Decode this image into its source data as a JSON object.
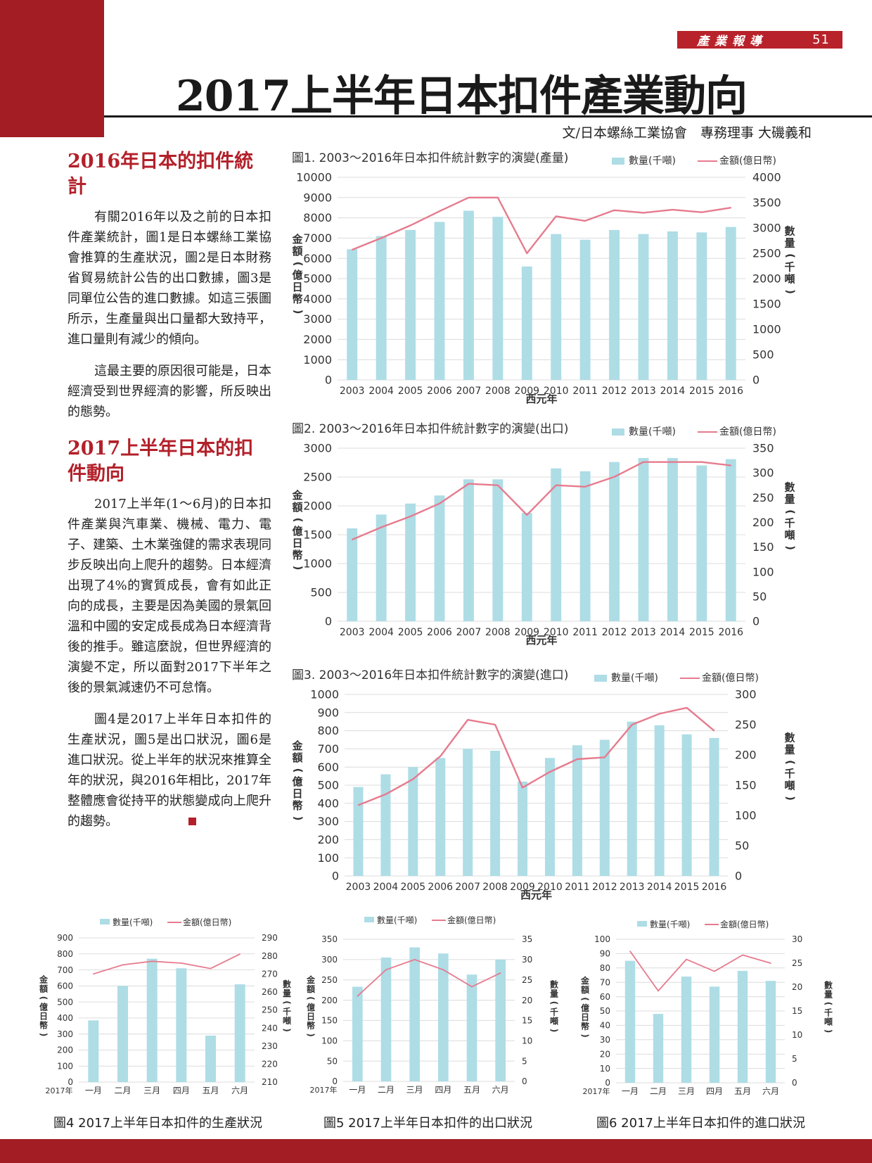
{
  "header": {
    "section": "產業報導",
    "page_number": "51"
  },
  "title": "2017上半年日本扣件產業動向",
  "byline": "文/日本螺絲工業協會　專務理事 大磯義和",
  "colors": {
    "accent": "#a31d24",
    "bar": "#aedde6",
    "line": "#e67b8e",
    "heading": "#b3202a"
  },
  "article": {
    "heading1": "2016年日本的扣件統計",
    "p1": "有關2016年以及之前的日本扣件產業統計，圖1是日本螺絲工業協會推算的生產狀況，圖2是日本財務省貿易統計公告的出口數據，圖3是同單位公告的進口數據。如這三張圖所示，生產量與出口量都大致持平，進口量則有減少的傾向。",
    "p2": "這最主要的原因很可能是，日本經濟受到世界經濟的影響，所反映出的態勢。",
    "heading2": "2017上半年日本的扣件動向",
    "p3": "2017上半年(1～6月)的日本扣件產業與汽車業、機械、電力、電子、建築、土木業強健的需求表現同步反映出向上爬升的趨勢。日本經濟出現了4%的實質成長，會有如此正向的成長，主要是因為美國的景氣回溫和中國的安定成長成為日本經濟背後的推手。雖這麼說，但世界經濟的演變不定，所以面對2017下半年之後的景氣減速仍不可怠惰。",
    "p4": "圖4是2017上半年日本扣件的生產狀況，圖5是出口狀況，圖6是進口狀況。從上半年的狀況來推算全年的狀況，與2016年相比，2017年整體應會從持平的狀態變成向上爬升的趨勢。"
  },
  "chart_data": [
    {
      "type": "bar",
      "title": "圖1. 2003～2016年日本扣件統計數字的演變(產量)",
      "xlabel": "西元年",
      "ylabel_left": "金額(億日幣)",
      "ylabel_right": "數量(千噸)",
      "categories": [
        "2003",
        "2004",
        "2005",
        "2006",
        "2007",
        "2008",
        "2009",
        "2010",
        "2011",
        "2012",
        "2013",
        "2014",
        "2015",
        "2016"
      ],
      "left_axis": {
        "min": 0,
        "max": 10000,
        "step": 1000
      },
      "right_axis": {
        "min": 0,
        "max": 4000,
        "step": 500
      },
      "series": [
        {
          "name": "數量(千噸)",
          "kind": "bar",
          "axis": "left",
          "values": [
            6450,
            7100,
            7400,
            7800,
            8350,
            8050,
            5600,
            7200,
            6920,
            7400,
            7200,
            7330,
            7280,
            7550
          ]
        },
        {
          "name": "金額(億日幣)",
          "kind": "line",
          "axis": "right",
          "values": [
            2570,
            2800,
            3050,
            3330,
            3600,
            3600,
            2500,
            3230,
            3140,
            3350,
            3300,
            3360,
            3310,
            3400
          ]
        }
      ]
    },
    {
      "type": "bar",
      "title": "圖2. 2003～2016年日本扣件統計數字的演變(出口)",
      "xlabel": "西元年",
      "ylabel_left": "金額(億日幣)",
      "ylabel_right": "數量(千噸)",
      "categories": [
        "2003",
        "2004",
        "2005",
        "2006",
        "2007",
        "2008",
        "2009",
        "2010",
        "2011",
        "2012",
        "2013",
        "2014",
        "2015",
        "2016"
      ],
      "left_axis": {
        "min": 0,
        "max": 3000,
        "step": 500
      },
      "right_axis": {
        "min": 0,
        "max": 350,
        "step": 50
      },
      "series": [
        {
          "name": "數量(千噸)",
          "kind": "bar",
          "axis": "left",
          "values": [
            1610,
            1850,
            2040,
            2180,
            2460,
            2460,
            1880,
            2650,
            2600,
            2760,
            2830,
            2830,
            2700,
            2810
          ]
        },
        {
          "name": "金額(億日幣)",
          "kind": "line",
          "axis": "right",
          "values": [
            165,
            190,
            212,
            238,
            278,
            275,
            215,
            275,
            272,
            292,
            322,
            322,
            322,
            315
          ]
        }
      ]
    },
    {
      "type": "bar",
      "title": "圖3. 2003～2016年日本扣件統計數字的演變(進口)",
      "xlabel": "西元年",
      "ylabel_left": "金額(億日幣)",
      "ylabel_right": "數量(千噸)",
      "categories": [
        "2003",
        "2004",
        "2005",
        "2006",
        "2007",
        "2008",
        "2009",
        "2010",
        "2011",
        "2012",
        "2013",
        "2014",
        "2015",
        "2016"
      ],
      "left_axis": {
        "min": 0,
        "max": 1000,
        "step": 100
      },
      "right_axis": {
        "min": 0,
        "max": 300,
        "step": 50
      },
      "series": [
        {
          "name": "數量(千噸)",
          "kind": "bar",
          "axis": "left",
          "values": [
            490,
            560,
            600,
            650,
            700,
            690,
            520,
            650,
            720,
            750,
            850,
            830,
            780,
            760
          ]
        },
        {
          "name": "金額(億日幣)",
          "kind": "line",
          "axis": "right",
          "values": [
            117,
            135,
            160,
            198,
            258,
            250,
            146,
            172,
            193,
            196,
            250,
            268,
            278,
            240
          ]
        }
      ]
    },
    {
      "type": "bar",
      "title": "",
      "caption": "圖4 2017上半年日本扣件的生產狀況",
      "year_label": "2017年",
      "ylabel_left": "金額(億日幣)",
      "ylabel_right": "數量(千噸)",
      "categories": [
        "一月",
        "二月",
        "三月",
        "四月",
        "五月",
        "六月"
      ],
      "left_axis": {
        "min": 0,
        "max": 900,
        "step": 100
      },
      "right_axis": {
        "min": 210,
        "max": 290,
        "step": 10
      },
      "series": [
        {
          "name": "數量(千噸)",
          "kind": "bar",
          "axis": "left",
          "values": [
            385,
            600,
            770,
            710,
            290,
            610
          ]
        },
        {
          "name": "金額(億日幣)",
          "kind": "line",
          "axis": "right",
          "values": [
            270,
            275,
            277,
            276,
            273,
            281
          ]
        }
      ]
    },
    {
      "type": "bar",
      "title": "",
      "caption": "圖5 2017上半年日本扣件的出口狀況",
      "year_label": "2017年",
      "ylabel_left": "金額(億日幣)",
      "ylabel_right": "數量(千噸)",
      "categories": [
        "一月",
        "二月",
        "三月",
        "四月",
        "五月",
        "六月"
      ],
      "left_axis": {
        "min": 0,
        "max": 350,
        "step": 50
      },
      "right_axis": {
        "min": 0,
        "max": 35,
        "step": 5
      },
      "series": [
        {
          "name": "數量(千噸)",
          "kind": "bar",
          "axis": "left",
          "values": [
            233,
            305,
            330,
            315,
            263,
            300
          ]
        },
        {
          "name": "金額(億日幣)",
          "kind": "line",
          "axis": "right",
          "values": [
            21,
            27.5,
            30,
            27.5,
            23.3,
            26.7
          ]
        }
      ]
    },
    {
      "type": "bar",
      "title": "",
      "caption": "圖6 2017上半年日本扣件的進口狀況",
      "year_label": "2017年",
      "ylabel_left": "金額(億日幣)",
      "ylabel_right": "數量(千噸)",
      "categories": [
        "一月",
        "二月",
        "三月",
        "四月",
        "五月",
        "六月"
      ],
      "left_axis": {
        "min": 0,
        "max": 100,
        "step": 10
      },
      "right_axis": {
        "min": 0,
        "max": 30,
        "step": 5
      },
      "series": [
        {
          "name": "數量(千噸)",
          "kind": "bar",
          "axis": "left",
          "values": [
            85,
            48,
            74,
            67,
            78,
            71
          ]
        },
        {
          "name": "金額(億日幣)",
          "kind": "line",
          "axis": "right",
          "values": [
            27.5,
            19.2,
            25.8,
            23.3,
            26.7,
            25
          ]
        }
      ]
    }
  ]
}
